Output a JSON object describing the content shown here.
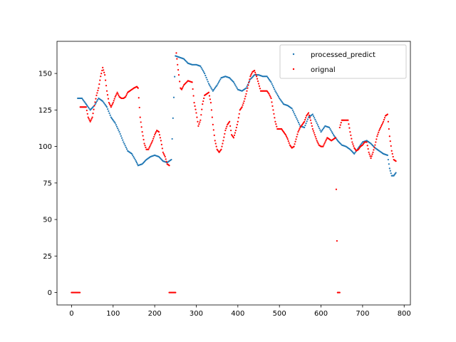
{
  "chart_data": {
    "type": "scatter",
    "title": "",
    "xlabel": "",
    "ylabel": "",
    "xlim": [
      -35,
      815
    ],
    "ylim": [
      -8.5,
      172
    ],
    "xticks": [
      0,
      100,
      200,
      300,
      400,
      500,
      600,
      700,
      800
    ],
    "yticks": [
      0,
      25,
      50,
      75,
      100,
      125,
      150
    ],
    "grid": false,
    "legend_position": "upper right",
    "series": [
      {
        "name": "processed_predict",
        "color": "#1f77b4",
        "keypoints": [
          [
            15,
            133
          ],
          [
            25,
            133
          ],
          [
            35,
            129
          ],
          [
            45,
            125
          ],
          [
            55,
            128
          ],
          [
            65,
            133
          ],
          [
            75,
            131
          ],
          [
            85,
            127
          ],
          [
            95,
            120
          ],
          [
            105,
            116
          ],
          [
            115,
            110
          ],
          [
            125,
            103
          ],
          [
            135,
            97
          ],
          [
            145,
            95
          ],
          [
            155,
            90
          ],
          [
            160,
            87
          ],
          [
            170,
            88
          ],
          [
            180,
            91
          ],
          [
            190,
            93
          ],
          [
            200,
            94
          ],
          [
            210,
            93
          ],
          [
            220,
            90
          ],
          [
            230,
            89
          ],
          [
            240,
            91
          ],
          [
            250,
            162
          ],
          [
            260,
            161
          ],
          [
            270,
            160
          ],
          [
            280,
            157
          ],
          [
            290,
            156
          ],
          [
            300,
            156
          ],
          [
            310,
            155
          ],
          [
            320,
            150
          ],
          [
            330,
            143
          ],
          [
            340,
            138
          ],
          [
            350,
            142
          ],
          [
            360,
            147
          ],
          [
            370,
            148
          ],
          [
            380,
            147
          ],
          [
            390,
            144
          ],
          [
            400,
            139
          ],
          [
            410,
            138
          ],
          [
            420,
            140
          ],
          [
            430,
            146
          ],
          [
            440,
            149
          ],
          [
            450,
            149
          ],
          [
            460,
            148
          ],
          [
            470,
            148
          ],
          [
            480,
            144
          ],
          [
            490,
            138
          ],
          [
            500,
            133
          ],
          [
            510,
            129
          ],
          [
            520,
            128
          ],
          [
            530,
            126
          ],
          [
            540,
            120
          ],
          [
            550,
            114
          ],
          [
            560,
            113
          ],
          [
            570,
            120
          ],
          [
            580,
            122
          ],
          [
            590,
            116
          ],
          [
            600,
            110
          ],
          [
            610,
            114
          ],
          [
            620,
            113
          ],
          [
            630,
            108
          ],
          [
            640,
            104
          ],
          [
            650,
            101
          ],
          [
            660,
            100
          ],
          [
            670,
            98
          ],
          [
            680,
            95
          ],
          [
            690,
            99
          ],
          [
            700,
            103
          ],
          [
            710,
            104
          ],
          [
            720,
            102
          ],
          [
            730,
            99
          ],
          [
            740,
            97
          ],
          [
            750,
            95
          ],
          [
            760,
            94
          ],
          [
            765,
            85
          ],
          [
            770,
            80
          ],
          [
            775,
            80
          ],
          [
            780,
            82
          ]
        ]
      },
      {
        "name": "orignal",
        "color": "#ff0000",
        "keypoints": [
          [
            0,
            0
          ],
          [
            20,
            0
          ],
          [
            21,
            127
          ],
          [
            35,
            127
          ],
          [
            40,
            120
          ],
          [
            45,
            117
          ],
          [
            50,
            120
          ],
          [
            55,
            128
          ],
          [
            60,
            135
          ],
          [
            65,
            140
          ],
          [
            70,
            148
          ],
          [
            75,
            154
          ],
          [
            80,
            149
          ],
          [
            85,
            138
          ],
          [
            90,
            130
          ],
          [
            95,
            127
          ],
          [
            100,
            130
          ],
          [
            105,
            134
          ],
          [
            110,
            137
          ],
          [
            115,
            134
          ],
          [
            120,
            133
          ],
          [
            125,
            133
          ],
          [
            130,
            134
          ],
          [
            135,
            137
          ],
          [
            140,
            138
          ],
          [
            150,
            140
          ],
          [
            157,
            141
          ],
          [
            160,
            140
          ],
          [
            165,
            120
          ],
          [
            170,
            110
          ],
          [
            175,
            102
          ],
          [
            180,
            98
          ],
          [
            185,
            98
          ],
          [
            190,
            101
          ],
          [
            195,
            104
          ],
          [
            200,
            108
          ],
          [
            205,
            111
          ],
          [
            210,
            110
          ],
          [
            215,
            104
          ],
          [
            220,
            96
          ],
          [
            225,
            93
          ],
          [
            230,
            88
          ],
          [
            235,
            87
          ],
          [
            235,
            0
          ],
          [
            250,
            0
          ],
          [
            252,
            164
          ],
          [
            255,
            156
          ],
          [
            258,
            149
          ],
          [
            262,
            140
          ],
          [
            265,
            139
          ],
          [
            270,
            142
          ],
          [
            280,
            145
          ],
          [
            290,
            144
          ],
          [
            295,
            130
          ],
          [
            300,
            123
          ],
          [
            305,
            114
          ],
          [
            310,
            118
          ],
          [
            315,
            129
          ],
          [
            320,
            135
          ],
          [
            325,
            136
          ],
          [
            330,
            137
          ],
          [
            335,
            130
          ],
          [
            340,
            115
          ],
          [
            345,
            104
          ],
          [
            350,
            98
          ],
          [
            355,
            96
          ],
          [
            360,
            98
          ],
          [
            365,
            104
          ],
          [
            370,
            111
          ],
          [
            375,
            115
          ],
          [
            380,
            117
          ],
          [
            385,
            108
          ],
          [
            390,
            106
          ],
          [
            395,
            111
          ],
          [
            400,
            117
          ],
          [
            405,
            125
          ],
          [
            410,
            127
          ],
          [
            415,
            131
          ],
          [
            420,
            136
          ],
          [
            425,
            142
          ],
          [
            430,
            148
          ],
          [
            435,
            151
          ],
          [
            440,
            152
          ],
          [
            445,
            148
          ],
          [
            450,
            143
          ],
          [
            455,
            138
          ],
          [
            460,
            138
          ],
          [
            465,
            138
          ],
          [
            470,
            138
          ],
          [
            475,
            136
          ],
          [
            480,
            133
          ],
          [
            485,
            125
          ],
          [
            490,
            117
          ],
          [
            495,
            112
          ],
          [
            500,
            112
          ],
          [
            505,
            112
          ],
          [
            510,
            110
          ],
          [
            515,
            108
          ],
          [
            520,
            105
          ],
          [
            525,
            101
          ],
          [
            530,
            99
          ],
          [
            535,
            100
          ],
          [
            540,
            105
          ],
          [
            545,
            110
          ],
          [
            550,
            113
          ],
          [
            555,
            115
          ],
          [
            560,
            117
          ],
          [
            565,
            121
          ],
          [
            570,
            123
          ],
          [
            575,
            118
          ],
          [
            580,
            112
          ],
          [
            585,
            108
          ],
          [
            590,
            104
          ],
          [
            595,
            101
          ],
          [
            600,
            100
          ],
          [
            605,
            100
          ],
          [
            610,
            103
          ],
          [
            615,
            106
          ],
          [
            620,
            105
          ],
          [
            625,
            104
          ],
          [
            630,
            105
          ],
          [
            635,
            106
          ],
          [
            640,
            0
          ],
          [
            645,
            0
          ],
          [
            645,
            113
          ],
          [
            650,
            118
          ],
          [
            655,
            118
          ],
          [
            665,
            118
          ],
          [
            670,
            110
          ],
          [
            675,
            103
          ],
          [
            680,
            99
          ],
          [
            685,
            97
          ],
          [
            690,
            98
          ],
          [
            695,
            100
          ],
          [
            700,
            101
          ],
          [
            705,
            103
          ],
          [
            710,
            103
          ],
          [
            715,
            96
          ],
          [
            720,
            92
          ],
          [
            725,
            96
          ],
          [
            730,
            101
          ],
          [
            735,
            107
          ],
          [
            740,
            111
          ],
          [
            745,
            114
          ],
          [
            750,
            117
          ],
          [
            755,
            121
          ],
          [
            760,
            122
          ],
          [
            765,
            107
          ],
          [
            770,
            97
          ],
          [
            775,
            91
          ],
          [
            780,
            90
          ]
        ]
      }
    ]
  }
}
